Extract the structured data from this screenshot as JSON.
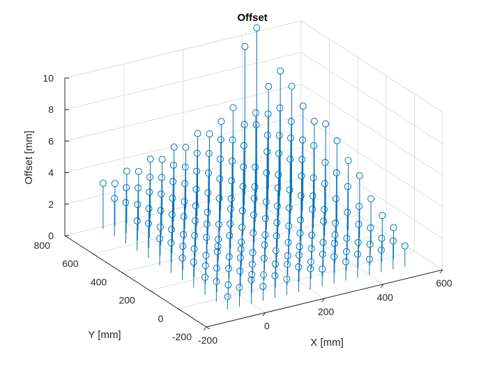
{
  "chart_data": {
    "type": "stem3",
    "title": "Offset",
    "xlabel": "X [mm]",
    "ylabel": "Y [mm]",
    "zlabel": "Offset [mm]",
    "xlim": [
      -200,
      600
    ],
    "ylim": [
      -200,
      800
    ],
    "zlim": [
      0,
      10
    ],
    "xticks": [
      -200,
      0,
      200,
      400,
      600
    ],
    "yticks": [
      -200,
      0,
      200,
      400,
      600,
      800
    ],
    "zticks": [
      0,
      2,
      4,
      6,
      8,
      10
    ],
    "grid": true,
    "color": "#0072bd",
    "marker": "circle",
    "x": [
      -80,
      -40,
      0,
      40,
      80,
      120,
      160,
      200,
      240,
      280,
      320,
      360,
      400,
      440,
      480,
      520,
      -80,
      -40,
      0,
      40,
      80,
      120,
      160,
      200,
      240,
      280,
      320,
      360,
      400,
      440,
      480,
      520,
      -80,
      -40,
      0,
      40,
      80,
      120,
      160,
      200,
      240,
      280,
      320,
      360,
      400,
      440,
      480,
      520,
      -80,
      -40,
      0,
      40,
      80,
      120,
      160,
      200,
      240,
      280,
      320,
      360,
      400,
      440,
      480,
      520,
      -80,
      -40,
      0,
      40,
      80,
      120,
      160,
      200,
      240,
      280,
      320,
      360,
      400,
      440,
      480,
      520,
      -80,
      -40,
      0,
      40,
      80,
      120,
      160,
      200,
      240,
      280,
      320,
      360,
      400,
      440,
      480,
      520,
      -80,
      -40,
      0,
      40,
      80,
      120,
      160,
      200,
      240,
      280,
      320,
      360,
      400,
      440,
      480,
      520,
      -80,
      -40,
      0,
      40,
      80,
      120,
      160,
      200,
      240,
      280,
      320,
      360,
      400,
      440,
      480,
      520,
      -80,
      -40,
      0,
      40,
      80,
      120,
      160,
      200,
      240,
      280,
      320,
      360,
      400,
      440,
      480,
      520,
      -80,
      -40,
      0,
      40,
      80,
      120,
      160,
      200,
      240,
      280,
      320,
      360,
      400,
      440,
      480,
      520,
      -80,
      -40,
      0,
      40,
      80,
      120,
      160,
      200,
      240,
      280,
      320,
      360,
      400,
      440,
      480,
      520,
      -80,
      -40,
      0,
      40,
      80,
      120,
      160,
      200,
      240,
      280,
      320,
      360,
      400,
      440,
      480,
      520
    ],
    "y": [
      -100,
      -100,
      -100,
      -100,
      -100,
      -100,
      -100,
      -100,
      -100,
      -100,
      -100,
      -100,
      -100,
      -100,
      -100,
      -100,
      -20,
      -20,
      -20,
      -20,
      -20,
      -20,
      -20,
      -20,
      -20,
      -20,
      -20,
      -20,
      -20,
      -20,
      -20,
      -20,
      60,
      60,
      60,
      60,
      60,
      60,
      60,
      60,
      60,
      60,
      60,
      60,
      60,
      60,
      60,
      60,
      140,
      140,
      140,
      140,
      140,
      140,
      140,
      140,
      140,
      140,
      140,
      140,
      140,
      140,
      140,
      140,
      220,
      220,
      220,
      220,
      220,
      220,
      220,
      220,
      220,
      220,
      220,
      220,
      220,
      220,
      220,
      220,
      300,
      300,
      300,
      300,
      300,
      300,
      300,
      300,
      300,
      300,
      300,
      300,
      300,
      300,
      300,
      300,
      380,
      380,
      380,
      380,
      380,
      380,
      380,
      380,
      380,
      380,
      380,
      380,
      380,
      380,
      380,
      380,
      460,
      460,
      460,
      460,
      460,
      460,
      460,
      460,
      460,
      460,
      460,
      460,
      460,
      460,
      460,
      460,
      540,
      540,
      540,
      540,
      540,
      540,
      540,
      540,
      540,
      540,
      540,
      540,
      540,
      540,
      540,
      540,
      620,
      620,
      620,
      620,
      620,
      620,
      620,
      620,
      620,
      620,
      620,
      620,
      620,
      620,
      620,
      620,
      700,
      700,
      700,
      700,
      700,
      700,
      700,
      700,
      700,
      700,
      700,
      700,
      700,
      700,
      700,
      700,
      780,
      780,
      780,
      780,
      780,
      780,
      780,
      780,
      780,
      780,
      780,
      780,
      780,
      780,
      780,
      780
    ],
    "z": [
      0.8,
      1.2,
      1.5,
      0.9,
      1.4,
      1.0,
      1.6,
      1.3,
      1.1,
      1.7,
      1.2,
      1.5,
      1.0,
      1.4,
      1.8,
      1.3,
      1.3,
      0.9,
      1.6,
      1.2,
      1.0,
      1.5,
      1.3,
      1.7,
      1.1,
      1.4,
      1.9,
      1.2,
      1.6,
      1.3,
      1.5,
      2.0,
      1.1,
      1.5,
      1.3,
      1.8,
      1.2,
      1.4,
      1.7,
      1.2,
      1.6,
      1.3,
      1.5,
      1.8,
      1.4,
      2.1,
      1.7,
      2.3,
      1.6,
      1.2,
      1.9,
      1.4,
      1.7,
      1.3,
      1.6,
      2.0,
      1.4,
      1.8,
      1.5,
      2.2,
      1.9,
      2.4,
      2.6,
      2.9,
      1.4,
      1.8,
      1.2,
      1.6,
      2.1,
      1.5,
      1.9,
      1.6,
      2.2,
      1.8,
      2.0,
      2.5,
      2.3,
      2.8,
      3.4,
      3.9,
      1.9,
      1.5,
      2.0,
      1.7,
      1.4,
      2.2,
      1.8,
      2.4,
      2.0,
      2.6,
      2.3,
      2.9,
      2.7,
      3.3,
      3.8,
      4.4,
      1.7,
      2.1,
      1.6,
      2.3,
      1.9,
      1.7,
      2.5,
      2.2,
      2.8,
      2.4,
      3.1,
      2.8,
      3.5,
      3.2,
      4.0,
      5.2,
      2.2,
      1.8,
      2.4,
      2.1,
      2.6,
      2.0,
      2.7,
      2.5,
      3.1,
      2.9,
      3.6,
      3.3,
      4.1,
      3.9,
      4.6,
      5.8,
      1.9,
      2.5,
      2.2,
      2.8,
      2.4,
      3.0,
      2.6,
      3.3,
      3.0,
      3.7,
      3.5,
      4.3,
      4.0,
      4.8,
      4.5,
      5.5,
      2.6,
      2.3,
      2.9,
      2.6,
      3.2,
      2.9,
      3.5,
      3.2,
      3.9,
      3.6,
      4.4,
      6.3,
      4.7,
      4.5,
      5.2,
      6.0,
      2.4,
      2.9,
      2.7,
      3.2,
      3.0,
      3.6,
      3.3,
      4.0,
      3.8,
      4.5,
      4.3,
      5.1,
      4.9,
      5.4,
      5.6,
      6.8,
      2.9,
      2.7,
      3.3,
      3.1,
      3.7,
      3.5,
      4.1,
      3.9,
      4.6,
      4.4,
      5.0,
      5.7,
      9.4,
      10.4,
      6.5,
      7.3
    ]
  }
}
